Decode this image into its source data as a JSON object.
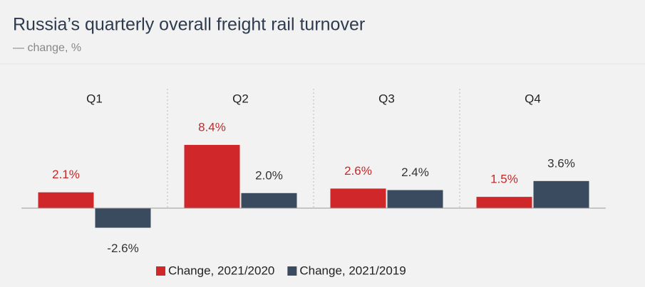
{
  "chart_data": {
    "type": "bar",
    "title": "Russia’s quarterly overall freight rail turnover",
    "subtitle": "— change, %",
    "categories": [
      "Q1",
      "Q2",
      "Q3",
      "Q4"
    ],
    "series": [
      {
        "name": "Change, 2021/2020",
        "color": "#d0282a",
        "values": [
          2.1,
          8.4,
          2.6,
          1.5
        ],
        "value_labels": [
          "2.1%",
          "8.4%",
          "2.6%",
          "1.5%"
        ]
      },
      {
        "name": "Change, 2021/2019",
        "color": "#3a4b5f",
        "values": [
          -2.6,
          2.0,
          2.4,
          3.6
        ],
        "value_labels": [
          "-2.6%",
          "2.0%",
          "2.4%",
          "3.6%"
        ]
      }
    ],
    "ylim": [
      -4,
      9
    ]
  }
}
